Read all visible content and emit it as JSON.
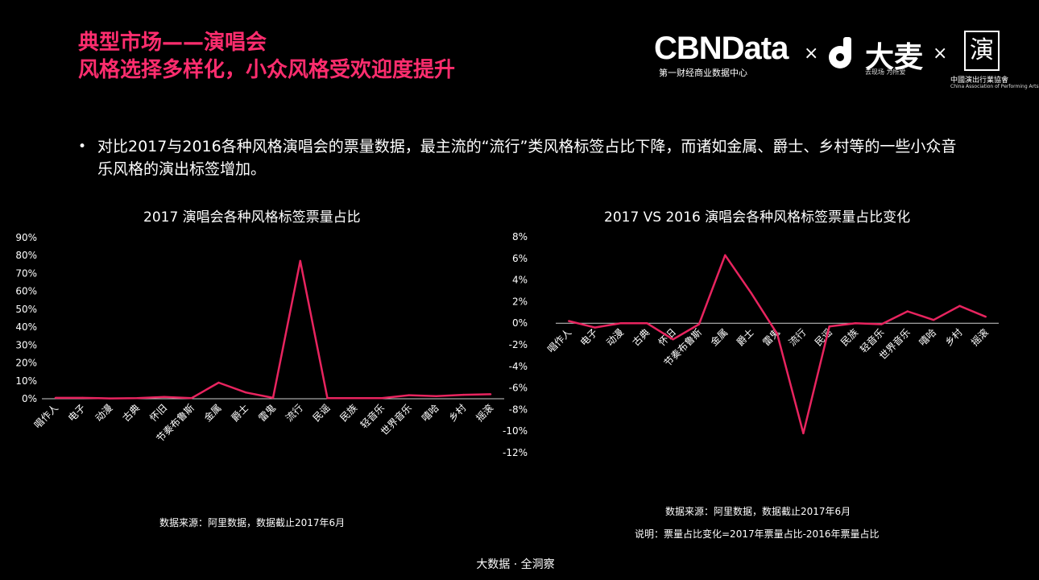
{
  "header": {
    "title_line1": "典型市场——演唱会",
    "title_line2": "风格选择多样化，小众风格受欢迎度提升",
    "accent_color": "#ff2d6e"
  },
  "logos": {
    "cbn_name": "CBNData",
    "cbn_sub": "第一财经商业数据中心",
    "times": "×",
    "damai_name": "大麦",
    "damai_sub": "去现场 为所爱",
    "assoc_seal": "演",
    "assoc_name": "中國演出行業協會",
    "assoc_en": "China Association of Performing Arts"
  },
  "intro": {
    "bullet": "•",
    "text": "对比2017与2016各种风格演唱会的票量数据，最主流的“流行”类风格标签占比下降，而诸如金属、爵士、乡村等的一些小众音乐风格的演出标签增加。"
  },
  "chart_data": [
    {
      "type": "line",
      "title": "2017 演唱会各种风格标签票量占比",
      "categories": [
        "唱作人",
        "电子",
        "动漫",
        "古典",
        "怀旧",
        "节奏布鲁斯",
        "金属",
        "爵士",
        "雷鬼",
        "流行",
        "民谣",
        "民族",
        "轻音乐",
        "世界音乐",
        "嘻哈",
        "乡村",
        "摇滚"
      ],
      "values": [
        0.5,
        0.5,
        0.2,
        0.3,
        1.0,
        0.3,
        9.0,
        3.5,
        0.5,
        77,
        0.3,
        0.3,
        0.3,
        2.0,
        1.5,
        2.2,
        2.5
      ],
      "yticks": [
        "0%",
        "10%",
        "20%",
        "30%",
        "40%",
        "50%",
        "60%",
        "70%",
        "80%",
        "90%"
      ],
      "ylim": [
        0,
        90
      ],
      "line_color": "#e8245f",
      "source": "数据来源：阿里数据，数据截止2017年6月"
    },
    {
      "type": "line",
      "title": "2017 VS 2016 演唱会各种风格标签票量占比变化",
      "categories": [
        "唱作人",
        "电子",
        "动漫",
        "古典",
        "怀旧",
        "节奏布鲁斯",
        "金属",
        "爵士",
        "雷鬼",
        "流行",
        "民谣",
        "民族",
        "轻音乐",
        "世界音乐",
        "嘻哈",
        "乡村",
        "摇滚"
      ],
      "values": [
        0.2,
        -0.4,
        0.0,
        0.0,
        -1.5,
        -0.1,
        6.3,
        2.8,
        -1.0,
        -10.2,
        -0.3,
        0.0,
        -0.1,
        1.1,
        0.3,
        1.6,
        0.6
      ],
      "yticks": [
        "8%",
        "6%",
        "4%",
        "2%",
        "0%",
        "-2%",
        "-4%",
        "-6%",
        "-8%",
        "-10%",
        "-12%"
      ],
      "ylim": [
        -12,
        8
      ],
      "line_color": "#e8245f",
      "source": "数据来源：阿里数据，数据截止2017年6月",
      "note": "说明：票量占比变化=2017年票量占比-2016年票量占比"
    }
  ],
  "footer": "大数据 · 全洞察"
}
